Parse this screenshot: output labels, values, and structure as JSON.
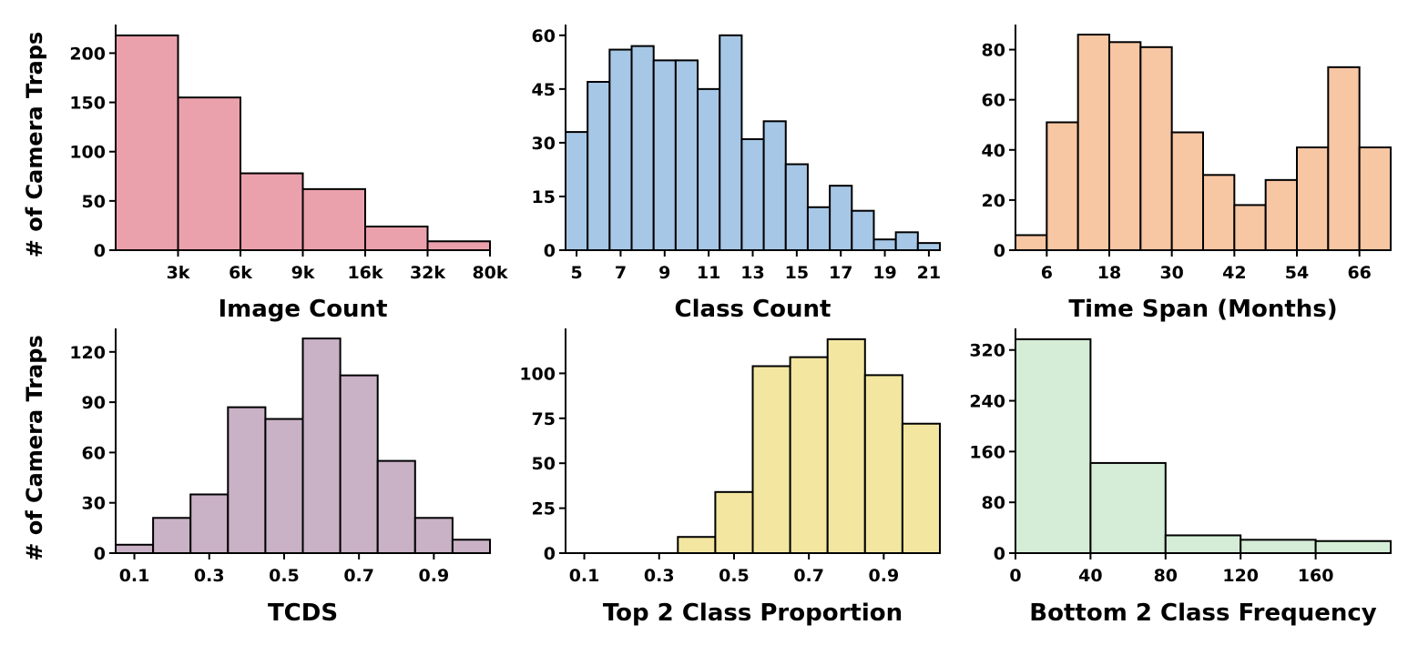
{
  "chart_data": [
    {
      "type": "bar",
      "subtype": "histogram",
      "xlabel": "Image Count",
      "ylabel": "# of Camera Traps",
      "color": "#EBA1AC",
      "bin_edge_labels": [
        "",
        "3k",
        "6k",
        "9k",
        "16k",
        "32k",
        "80k"
      ],
      "values": [
        218,
        155,
        78,
        62,
        24,
        9
      ],
      "ylim": [
        0,
        229
      ],
      "yticks": [
        0,
        50,
        100,
        150,
        200
      ],
      "grid": false
    },
    {
      "type": "bar",
      "subtype": "histogram",
      "xlabel": "Class Count",
      "ylabel": "",
      "color": "#A7C7E7",
      "bin_edges": [
        4.5,
        5.5,
        6.5,
        7.5,
        8.5,
        9.5,
        10.5,
        11.5,
        12.5,
        13.5,
        14.5,
        15.5,
        16.5,
        17.5,
        18.5,
        19.5,
        20.5,
        21.5
      ],
      "values": [
        33,
        47,
        56,
        57,
        53,
        53,
        45,
        60,
        31,
        36,
        24,
        12,
        18,
        11,
        3,
        5,
        2
      ],
      "xlim": [
        4.5,
        21.5
      ],
      "xticks": [
        5,
        7,
        9,
        11,
        13,
        15,
        17,
        19,
        21
      ],
      "ylim": [
        0,
        63
      ],
      "yticks": [
        0,
        15,
        30,
        45,
        60
      ],
      "grid": false
    },
    {
      "type": "bar",
      "subtype": "histogram",
      "xlabel": "Time Span (Months)",
      "ylabel": "",
      "color": "#F7C6A3",
      "bin_edges": [
        0,
        6,
        12,
        18,
        24,
        30,
        36,
        42,
        48,
        54,
        60,
        66,
        72
      ],
      "values": [
        6,
        51,
        86,
        83,
        81,
        47,
        30,
        18,
        28,
        41,
        73,
        41
      ],
      "xlim": [
        0,
        72
      ],
      "xticks": [
        6,
        18,
        30,
        42,
        54,
        66
      ],
      "ylim": [
        0,
        90
      ],
      "yticks": [
        0,
        20,
        40,
        60,
        80
      ],
      "grid": false
    },
    {
      "type": "bar",
      "subtype": "histogram",
      "xlabel": "TCDS",
      "ylabel": "# of Camera Traps",
      "color": "#C9B1C6",
      "bin_edges": [
        0.05,
        0.15,
        0.25,
        0.35,
        0.45,
        0.55,
        0.65,
        0.75,
        0.85,
        0.95,
        1.05
      ],
      "values": [
        5,
        21,
        35,
        87,
        80,
        128,
        106,
        55,
        21,
        8
      ],
      "xlim": [
        0.05,
        1.05
      ],
      "xticks": [
        "0.1",
        "0.3",
        "0.5",
        "0.7",
        "0.9"
      ],
      "ylim": [
        0,
        134
      ],
      "yticks": [
        0,
        30,
        60,
        90,
        120
      ],
      "grid": false
    },
    {
      "type": "bar",
      "subtype": "histogram",
      "xlabel": "Top 2 Class Proportion",
      "ylabel": "",
      "color": "#F2E6A1",
      "bin_edges": [
        0.05,
        0.15,
        0.25,
        0.35,
        0.45,
        0.55,
        0.65,
        0.75,
        0.85,
        0.95,
        1.05
      ],
      "values": [
        0,
        0,
        0,
        9,
        34,
        104,
        109,
        119,
        99,
        72
      ],
      "xlim": [
        0.05,
        1.05
      ],
      "xticks": [
        "0.1",
        "0.3",
        "0.5",
        "0.7",
        "0.9"
      ],
      "ylim": [
        0,
        125
      ],
      "yticks": [
        0,
        25,
        50,
        75,
        100
      ],
      "grid": false
    },
    {
      "type": "bar",
      "subtype": "histogram",
      "xlabel": "Bottom 2 Class Frequency",
      "ylabel": "",
      "color": "#D5EDD6",
      "bin_edges": [
        0,
        40,
        80,
        120,
        160,
        200
      ],
      "values": [
        337,
        142,
        28,
        21,
        19
      ],
      "xlim": [
        0,
        200
      ],
      "xticks": [
        0,
        40,
        80,
        120,
        160
      ],
      "ylim": [
        0,
        354
      ],
      "yticks": [
        0,
        80,
        160,
        240,
        320
      ],
      "grid": false
    }
  ]
}
